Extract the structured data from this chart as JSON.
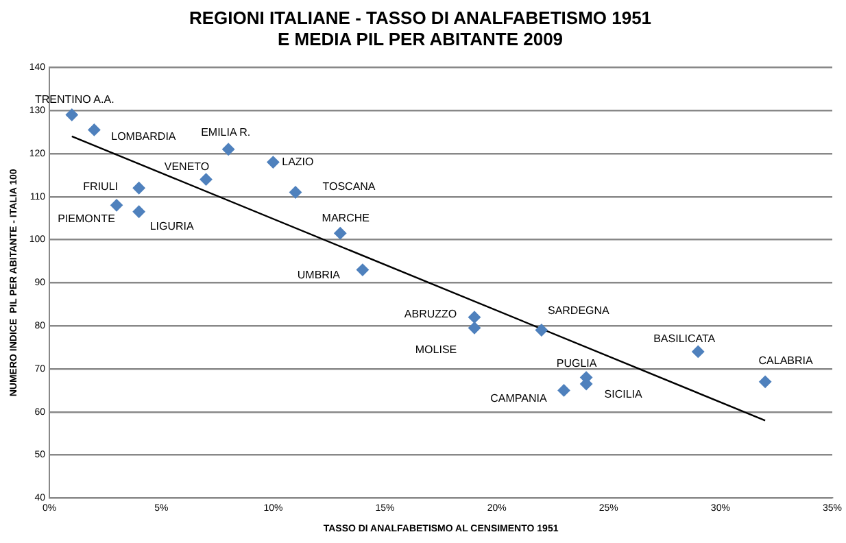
{
  "chart_data": {
    "type": "scatter",
    "title": "REGIONI ITALIANE - TASSO DI ANALFABETISMO 1951\nE MEDIA PIL PER ABITANTE 2009",
    "xlabel": "TASSO DI ANALFABETISMO AL CENSIMENTO 1951",
    "ylabel": "NUMERO INDICE  PIL PER ABITANTE - ITALIA 100",
    "xlim": [
      0,
      35
    ],
    "xticks": [
      {
        "value": 0,
        "label": "0%"
      },
      {
        "value": 5,
        "label": "5%"
      },
      {
        "value": 10,
        "label": "10%"
      },
      {
        "value": 15,
        "label": "15%"
      },
      {
        "value": 20,
        "label": "20%"
      },
      {
        "value": 25,
        "label": "25%"
      },
      {
        "value": 30,
        "label": "30%"
      },
      {
        "value": 35,
        "label": "35%"
      }
    ],
    "ylim": [
      40,
      140
    ],
    "yticks": [
      40,
      50,
      60,
      70,
      80,
      90,
      100,
      110,
      120,
      130,
      140
    ],
    "grid": "y",
    "legend": false,
    "marker": "diamond",
    "series": [
      {
        "color": "#4f81bd",
        "x": [
          1,
          2,
          8,
          10,
          7,
          11,
          4,
          3,
          4,
          13,
          14,
          19,
          19,
          22,
          29,
          32,
          24,
          24,
          23
        ],
        "values": [
          129,
          125.5,
          121,
          118,
          114,
          111,
          112,
          108,
          106.5,
          101.5,
          93,
          82,
          79.5,
          79,
          74,
          67,
          68,
          66.5,
          65
        ]
      },
      {
        "type": "line",
        "marker": "none",
        "color": "#000000",
        "x": [
          1,
          32
        ],
        "values": [
          124,
          58
        ]
      }
    ],
    "annotations": [
      {
        "text": "TRENTINO A.A.",
        "x": 1,
        "y": 129
      },
      {
        "text": "LOMBARDIA",
        "x": 2,
        "y": 125.5
      },
      {
        "text": "EMILIA R.",
        "x": 8,
        "y": 121
      },
      {
        "text": "LAZIO",
        "x": 10,
        "y": 118
      },
      {
        "text": "VENETO",
        "x": 7,
        "y": 114
      },
      {
        "text": "TOSCANA",
        "x": 11,
        "y": 111
      },
      {
        "text": "FRIULI",
        "x": 4,
        "y": 112
      },
      {
        "text": "PIEMONTE",
        "x": 3,
        "y": 108
      },
      {
        "text": "LIGURIA",
        "x": 4,
        "y": 106.5
      },
      {
        "text": "MARCHE",
        "x": 13,
        "y": 101.5
      },
      {
        "text": "UMBRIA",
        "x": 14,
        "y": 93
      },
      {
        "text": "ABRUZZO",
        "x": 19,
        "y": 82
      },
      {
        "text": "MOLISE",
        "x": 19,
        "y": 79.5
      },
      {
        "text": "SARDEGNA",
        "x": 22,
        "y": 79
      },
      {
        "text": "BASILICATA",
        "x": 29,
        "y": 74
      },
      {
        "text": "CALABRIA",
        "x": 32,
        "y": 67
      },
      {
        "text": "PUGLIA",
        "x": 24,
        "y": 68
      },
      {
        "text": "SICILIA",
        "x": 24,
        "y": 66.5
      },
      {
        "text": "CAMPANIA",
        "x": 23,
        "y": 65
      }
    ]
  }
}
